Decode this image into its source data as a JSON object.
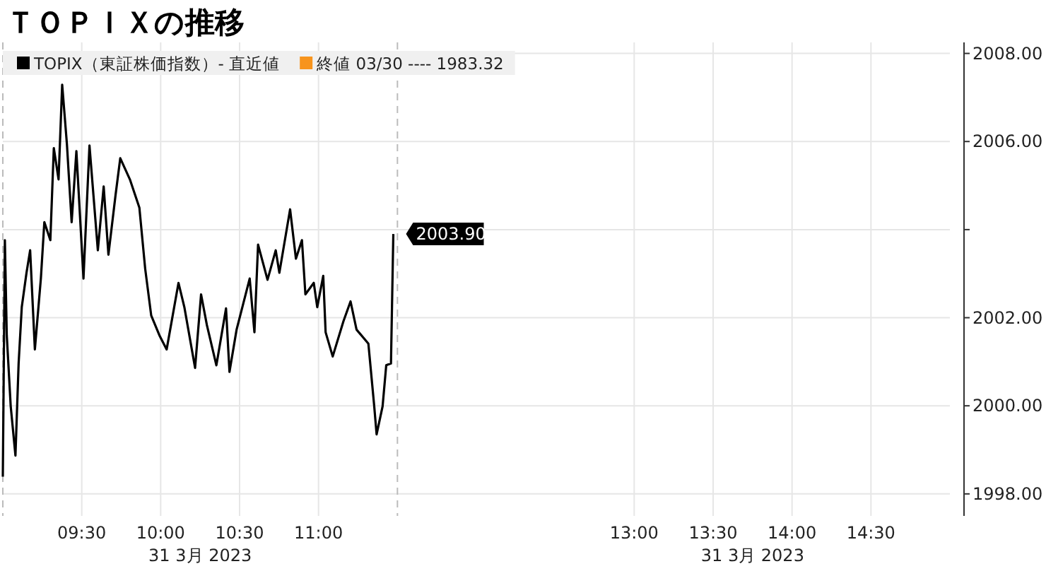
{
  "chart_data": {
    "type": "line",
    "title": "ＴＯＰＩＸの推移",
    "x": [
      9.0,
      9.013,
      9.025,
      9.05,
      9.08,
      9.1,
      9.12,
      9.15,
      9.173,
      9.203,
      9.241,
      9.263,
      9.301,
      9.323,
      9.353,
      9.376,
      9.406,
      9.436,
      9.466,
      9.511,
      9.549,
      9.602,
      9.639,
      9.669,
      9.714,
      9.744,
      9.805,
      9.865,
      9.902,
      9.94,
      9.992,
      10.038,
      10.113,
      10.15,
      10.218,
      10.256,
      10.293,
      10.353,
      10.414,
      10.436,
      10.481,
      10.564,
      10.594,
      10.617,
      10.677,
      10.729,
      10.752,
      10.82,
      10.857,
      10.895,
      10.917,
      10.97,
      10.992,
      11.03,
      11.045,
      11.09,
      11.158,
      11.203,
      11.241,
      11.316,
      11.353,
      11.368,
      11.406,
      11.429,
      11.459,
      11.474
    ],
    "series": [
      {
        "name": "TOPIX（東証株価指数）- 直近値",
        "color": "#000000",
        "values": [
          1998.39,
          2003.76,
          2001.6,
          1999.99,
          1998.87,
          2000.96,
          2002.24,
          2003.02,
          2003.53,
          2001.28,
          2002.89,
          2004.17,
          2003.76,
          2005.85,
          2005.14,
          2007.29,
          2005.94,
          2004.17,
          2005.78,
          2002.89,
          2005.91,
          2003.53,
          2004.98,
          2003.43,
          2004.78,
          2005.62,
          2005.14,
          2004.5,
          2003.11,
          2002.05,
          2001.6,
          2001.28,
          2002.79,
          2002.24,
          2000.86,
          2002.53,
          2001.83,
          2000.92,
          2002.21,
          2000.77,
          2001.73,
          2002.89,
          2001.67,
          2003.66,
          2002.86,
          2003.53,
          2003.02,
          2004.46,
          2003.34,
          2003.76,
          2002.53,
          2002.79,
          2002.24,
          2002.95,
          2001.67,
          2001.12,
          2001.92,
          2002.37,
          2001.73,
          2001.41,
          1999.99,
          1999.35,
          1999.99,
          2000.92,
          2000.96,
          2003.9
        ],
        "value_labels": [
          null,
          null,
          null,
          null,
          null,
          null,
          null,
          null,
          null,
          null,
          null,
          null,
          null,
          null,
          null,
          null,
          null,
          null,
          null,
          null,
          null,
          null,
          null,
          null,
          null,
          null,
          null,
          null,
          null,
          null,
          null,
          null,
          null,
          null,
          null,
          null,
          null,
          null,
          null,
          null,
          null,
          null,
          null,
          null,
          null,
          null,
          null,
          null,
          null,
          null,
          null,
          null,
          null,
          null,
          null,
          null,
          null,
          null,
          null,
          null,
          null,
          null,
          null,
          null,
          null,
          "2003.90"
        ]
      },
      {
        "name": "終値 03/30 ---- 1983.32",
        "color": "#f7941d",
        "values": [
          null,
          null,
          null,
          null,
          null,
          null,
          null,
          null,
          null,
          null,
          null,
          null,
          null,
          null,
          null,
          null,
          null,
          null,
          null,
          null,
          null,
          null,
          null,
          null,
          null,
          null,
          null,
          null,
          null,
          null,
          null,
          null,
          null,
          null,
          null,
          null,
          null,
          null,
          null,
          null,
          null,
          null,
          null,
          null,
          null,
          null,
          null,
          null,
          null,
          null,
          null,
          null,
          null,
          null,
          null,
          null,
          null,
          null,
          null,
          null,
          null,
          null,
          null,
          null,
          null,
          null
        ]
      }
    ],
    "xlim": [
      9,
      15
    ],
    "xticks": [
      {
        "value": 9.5,
        "label": "09:30"
      },
      {
        "value": 10,
        "label": "10:00"
      },
      {
        "value": 10.5,
        "label": "10:30"
      },
      {
        "value": 11,
        "label": "11:00"
      },
      {
        "value": 13,
        "label": "13:00"
      },
      {
        "value": 13.5,
        "label": "13:30"
      },
      {
        "value": 14,
        "label": "14:00"
      },
      {
        "value": 14.5,
        "label": "14:30"
      }
    ],
    "ylim": [
      1997.5,
      2008.25
    ],
    "yticks": [
      {
        "value": 1998,
        "label": "1998.00"
      },
      {
        "value": 2000,
        "label": "2000.00"
      },
      {
        "value": 2002,
        "label": "2002.00"
      },
      {
        "value": 2004,
        "label": null
      },
      {
        "value": 2006,
        "label": "2006.00"
      },
      {
        "value": 2008,
        "label": "2008.00"
      }
    ],
    "ref_lines": [
      {
        "axis": "x",
        "value": 9.0,
        "line_style": "dashed",
        "color": "#bbbbbb"
      },
      {
        "axis": "x",
        "value": 11.5,
        "line_style": "dashed",
        "color": "#bbbbbb"
      }
    ],
    "annotations": [
      "31 3月 2023",
      "31 3月 2023"
    ],
    "grid": true,
    "legend": "top left"
  }
}
